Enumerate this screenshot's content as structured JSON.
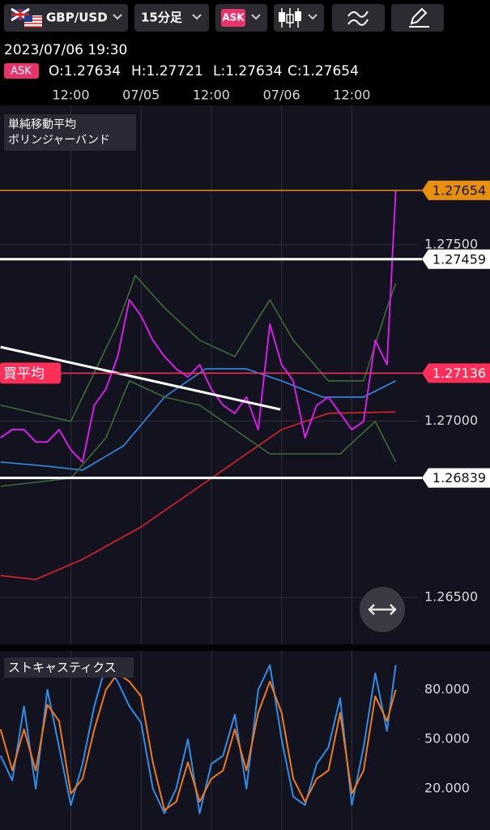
{
  "toolbar": {
    "symbol": "GBP/USD",
    "timeframe": "15分足",
    "price_type": "ASK"
  },
  "quote": {
    "datetime": "2023/07/06 19:30",
    "price_type": "ASK",
    "ohlc": [
      "O:1.27634",
      "H:1.27721",
      "L:1.27634",
      "C:1.27654"
    ]
  },
  "chart_data": [
    {
      "type": "line",
      "grid": true,
      "xlim": [
        -0.1,
        83.6
      ],
      "xticks": [
        {
          "value": 12,
          "label": "12:00"
        },
        {
          "value": 24,
          "label": "07/05"
        },
        {
          "value": 36,
          "label": "12:00"
        },
        {
          "value": 48,
          "label": "07/06"
        },
        {
          "value": 60,
          "label": "12:00"
        }
      ],
      "ylim": [
        1.26367,
        1.27895
      ],
      "yticks": [
        {
          "value": 1.265,
          "label": "1.26500"
        },
        {
          "value": 1.27,
          "label": "1.27000"
        },
        {
          "value": 1.275,
          "label": "1.27500"
        }
      ],
      "series": [
        {
          "color": "#d41ee6",
          "x": [
            0,
            2,
            4,
            6,
            8,
            10,
            12,
            14,
            16,
            18,
            20,
            22,
            24,
            26,
            28,
            30,
            32,
            34,
            36,
            38,
            40,
            42,
            44,
            46,
            48,
            50,
            52,
            54,
            56,
            58,
            60,
            62,
            64,
            66,
            67.5
          ],
          "values": [
            1.26953,
            1.26976,
            1.26976,
            1.26941,
            1.26941,
            1.26976,
            1.26918,
            1.26884,
            1.27045,
            1.27091,
            1.27183,
            1.27344,
            1.27298,
            1.27229,
            1.27183,
            1.27148,
            1.27125,
            1.2716,
            1.27091,
            1.27045,
            1.27022,
            1.27068,
            1.26976,
            1.27275,
            1.2716,
            1.27114,
            1.26953,
            1.27045,
            1.27068,
            1.27022,
            1.26976,
            1.26999,
            1.27229,
            1.2716,
            1.27654
          ]
        }
      ],
      "indicators": [
        {
          "label": "単純移動平均",
          "lines": [
            {
              "color": "#2f8de8",
              "x": [
                0,
                8,
                14,
                21,
                28,
                35,
                42,
                48,
                55,
                62,
                67.5
              ],
              "values": [
                1.26884,
                1.26872,
                1.26861,
                1.2693,
                1.27068,
                1.27148,
                1.27148,
                1.27114,
                1.27068,
                1.27068,
                1.27114
              ]
            },
            {
              "color": "#e0202a",
              "x": [
                0,
                6,
                14,
                24,
                32,
                40,
                48,
                56,
                67.5
              ],
              "values": [
                1.26562,
                1.26551,
                1.26608,
                1.267,
                1.26792,
                1.26884,
                1.26976,
                1.27022,
                1.27026
              ]
            }
          ]
        },
        {
          "label": "ボリンジャーバンド",
          "lines": [
            {
              "color": "#3d6b35",
              "x": [
                0,
                12,
                20,
                23,
                28,
                34,
                40,
                46,
                50,
                56,
                62,
                66,
                67.5
              ],
              "values": [
                1.27045,
                1.26999,
                1.27275,
                1.27413,
                1.27321,
                1.27229,
                1.27183,
                1.27344,
                1.27229,
                1.27114,
                1.27114,
                1.27321,
                1.2739
              ]
            },
            {
              "color": "#3d6b35",
              "x": [
                0,
                12,
                18,
                22,
                28,
                34,
                40,
                46,
                52,
                58,
                64,
                67.5
              ],
              "values": [
                1.26815,
                1.26838,
                1.26953,
                1.27114,
                1.27068,
                1.27045,
                1.26976,
                1.26907,
                1.26907,
                1.26907,
                1.26999,
                1.26884
              ]
            }
          ]
        }
      ],
      "price_lines": [
        {
          "value": 1.27654,
          "color": "#e8900c"
        },
        {
          "value": 1.27459,
          "color": "#ffffff"
        },
        {
          "value": 1.27136,
          "color": "#ff2f5a",
          "label": "買平均"
        },
        {
          "value": 1.26839,
          "color": "#ffffff"
        }
      ],
      "trend_line": {
        "color": "#ffffff",
        "x": [
          0,
          47.8
        ],
        "values": [
          1.2721,
          1.27033
        ]
      }
    },
    {
      "type": "line",
      "title": "ストキャスティクス",
      "xlim": [
        -0.1,
        83.6
      ],
      "ylim": [
        -5.1,
        103.6
      ],
      "yticks": [
        {
          "value": 20,
          "label": "20.000"
        },
        {
          "value": 50,
          "label": "50.000"
        },
        {
          "value": 80,
          "label": "80.000"
        }
      ],
      "x": [
        0,
        2,
        4,
        6,
        8,
        10,
        12,
        14,
        16,
        18,
        20,
        22,
        24,
        26,
        28,
        30,
        32,
        34,
        36,
        38,
        40,
        42,
        44,
        46,
        48,
        50,
        52,
        54,
        56,
        58,
        60,
        62,
        64,
        66,
        67.5
      ],
      "series": [
        {
          "color": "#2f8de8",
          "values": [
            40,
            25,
            70,
            20,
            80,
            45,
            10,
            35,
            70,
            95,
            85,
            70,
            60,
            20,
            5,
            20,
            50,
            5,
            35,
            40,
            65,
            20,
            80,
            95,
            50,
            15,
            10,
            35,
            45,
            75,
            10,
            45,
            90,
            55,
            95
          ]
        },
        {
          "color": "#f07a1a",
          "values": [
            56,
            31,
            56,
            31,
            71,
            61,
            17,
            26,
            56,
            80,
            90,
            85,
            76,
            36,
            7,
            12,
            36,
            12,
            26,
            31,
            56,
            31,
            66,
            85,
            66,
            26,
            12,
            26,
            31,
            66,
            17,
            31,
            76,
            61,
            80
          ]
        }
      ]
    }
  ]
}
